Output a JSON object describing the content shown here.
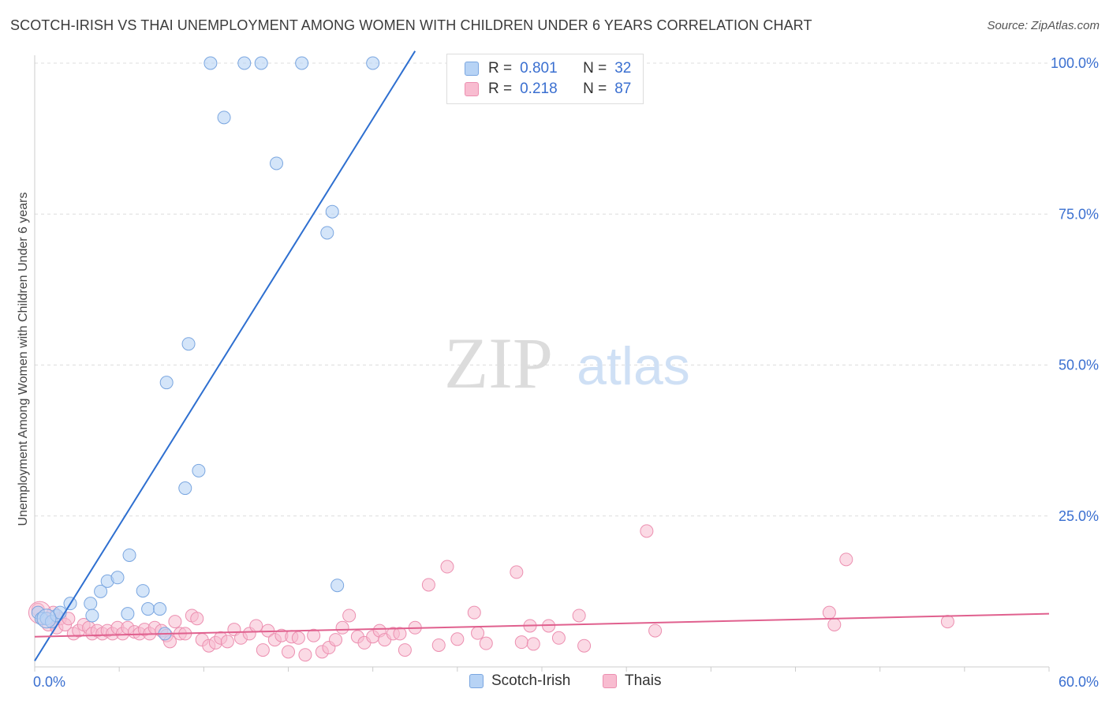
{
  "title": "SCOTCH-IRISH VS THAI UNEMPLOYMENT AMONG WOMEN WITH CHILDREN UNDER 6 YEARS CORRELATION CHART",
  "source": "Source: ZipAtlas.com",
  "watermark": {
    "zip": "ZIP",
    "atlas": "atlas"
  },
  "legend": {
    "r_label": "R =",
    "n_label": "N =",
    "rows": [
      {
        "r": "0.801",
        "n": "32"
      },
      {
        "r": "0.218",
        "n": "87"
      }
    ]
  },
  "colors": {
    "blue_fill": "#b7d3f5",
    "blue_stroke": "#7aa6e0",
    "blue_line": "#2e6fd0",
    "pink_fill": "#f8bcd0",
    "pink_stroke": "#ec8fb0",
    "pink_line": "#e0608e",
    "tick_label": "#3a6fd0",
    "grid": "#dddddd"
  },
  "chart_data": {
    "type": "scatter",
    "title": "SCOTCH-IRISH VS THAI UNEMPLOYMENT AMONG WOMEN WITH CHILDREN UNDER 6 YEARS CORRELATION CHART",
    "xlabel": "",
    "ylabel": "Unemployment Among Women with Children Under 6 years",
    "xlim": [
      0,
      60
    ],
    "ylim": [
      0,
      102
    ],
    "x_tick_labels": [
      "0.0%",
      "60.0%"
    ],
    "y_ticks": [
      25,
      50,
      75,
      100
    ],
    "y_tick_labels": [
      "25.0%",
      "50.0%",
      "75.0%",
      "100.0%"
    ],
    "grid": true,
    "legend_position": "bottom",
    "series": [
      {
        "name": "Scotch-Irish",
        "r": 0.801,
        "n": 32,
        "trend": {
          "x0": 0.0,
          "y0": 1.0,
          "x1": 22.5,
          "y1": 102
        },
        "points": [
          [
            0.2,
            9
          ],
          [
            0.4,
            8
          ],
          [
            0.7,
            8
          ],
          [
            1.0,
            7.5
          ],
          [
            1.3,
            8.5
          ],
          [
            1.5,
            9
          ],
          [
            2.1,
            10.5
          ],
          [
            3.3,
            10.5
          ],
          [
            3.4,
            8.5
          ],
          [
            3.9,
            12.5
          ],
          [
            4.3,
            14.2
          ],
          [
            4.9,
            14.8
          ],
          [
            5.5,
            8.8
          ],
          [
            5.6,
            18.5
          ],
          [
            6.4,
            12.6
          ],
          [
            6.7,
            9.6
          ],
          [
            7.4,
            9.6
          ],
          [
            7.7,
            5.5
          ],
          [
            7.8,
            47.1
          ],
          [
            8.9,
            29.6
          ],
          [
            9.1,
            53.5
          ],
          [
            9.7,
            32.5
          ],
          [
            10.4,
            100
          ],
          [
            11.2,
            91
          ],
          [
            12.4,
            100
          ],
          [
            13.4,
            100
          ],
          [
            14.3,
            83.4
          ],
          [
            15.8,
            100
          ],
          [
            17.3,
            71.9
          ],
          [
            17.6,
            75.4
          ],
          [
            17.9,
            13.5
          ],
          [
            20.0,
            100
          ]
        ]
      },
      {
        "name": "Thais",
        "r": 0.218,
        "n": 87,
        "trend": {
          "x0": 0,
          "y0": 5.0,
          "x1": 60,
          "y1": 8.8
        },
        "points": [
          [
            0.2,
            9.5
          ],
          [
            0.5,
            8
          ],
          [
            0.8,
            7
          ],
          [
            1.0,
            7.5
          ],
          [
            1.3,
            6.5
          ],
          [
            1.5,
            8
          ],
          [
            1.8,
            7
          ],
          [
            2.0,
            8
          ],
          [
            2.3,
            5.5
          ],
          [
            2.6,
            6
          ],
          [
            2.9,
            7
          ],
          [
            3.2,
            6.5
          ],
          [
            3.4,
            5.5
          ],
          [
            3.7,
            6
          ],
          [
            4.0,
            5.5
          ],
          [
            4.3,
            6
          ],
          [
            4.6,
            5.5
          ],
          [
            4.9,
            6.5
          ],
          [
            5.2,
            5.5
          ],
          [
            5.5,
            6.5
          ],
          [
            5.9,
            5.8
          ],
          [
            6.2,
            5.5
          ],
          [
            6.5,
            6.2
          ],
          [
            6.8,
            5.5
          ],
          [
            7.1,
            6.5
          ],
          [
            7.5,
            6
          ],
          [
            7.8,
            5.2
          ],
          [
            8.0,
            4.2
          ],
          [
            8.3,
            7.5
          ],
          [
            8.6,
            5.5
          ],
          [
            8.9,
            5.5
          ],
          [
            9.3,
            8.5
          ],
          [
            9.6,
            8
          ],
          [
            9.9,
            4.5
          ],
          [
            10.3,
            3.5
          ],
          [
            10.7,
            4
          ],
          [
            11.0,
            4.8
          ],
          [
            11.4,
            4.2
          ],
          [
            11.8,
            6.2
          ],
          [
            12.2,
            4.8
          ],
          [
            12.7,
            5.5
          ],
          [
            13.1,
            6.8
          ],
          [
            13.5,
            2.8
          ],
          [
            13.8,
            6
          ],
          [
            14.2,
            4.5
          ],
          [
            14.6,
            5.2
          ],
          [
            15.0,
            2.5
          ],
          [
            15.2,
            5
          ],
          [
            15.6,
            4.8
          ],
          [
            16.0,
            2
          ],
          [
            16.5,
            5.2
          ],
          [
            17.0,
            2.5
          ],
          [
            17.4,
            3.2
          ],
          [
            17.8,
            4.5
          ],
          [
            18.2,
            6.5
          ],
          [
            18.6,
            8.5
          ],
          [
            19.1,
            5
          ],
          [
            19.5,
            4
          ],
          [
            20.0,
            5
          ],
          [
            20.4,
            6
          ],
          [
            20.7,
            4.5
          ],
          [
            21.2,
            5.5
          ],
          [
            21.6,
            5.5
          ],
          [
            21.9,
            2.8
          ],
          [
            22.5,
            6.5
          ],
          [
            23.3,
            13.6
          ],
          [
            23.9,
            3.6
          ],
          [
            24.4,
            16.6
          ],
          [
            25.0,
            4.6
          ],
          [
            26.0,
            9
          ],
          [
            26.2,
            5.6
          ],
          [
            26.7,
            3.9
          ],
          [
            28.5,
            15.7
          ],
          [
            28.8,
            4.1
          ],
          [
            29.3,
            6.8
          ],
          [
            29.5,
            3.8
          ],
          [
            30.4,
            6.8
          ],
          [
            31.0,
            4.8
          ],
          [
            32.2,
            8.5
          ],
          [
            32.5,
            3.5
          ],
          [
            36.2,
            22.5
          ],
          [
            36.7,
            6
          ],
          [
            47.0,
            9
          ],
          [
            47.3,
            7
          ],
          [
            48.0,
            17.8
          ],
          [
            54.0,
            7.5
          ],
          [
            1.1,
            9
          ]
        ]
      }
    ]
  }
}
